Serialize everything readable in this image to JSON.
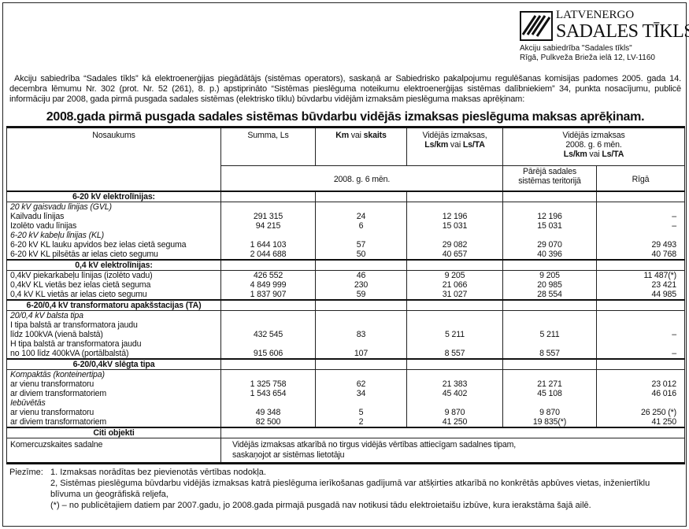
{
  "header": {
    "brand_line1": "LATVENERGO",
    "brand_line2": "SADALES TĪKLS",
    "company": "Akciju sabiedrība \"Sadales tīkls\"",
    "address": "Rīgā, Pulkveža Brieža ielā 12, LV-1160"
  },
  "intro": "Akciju sabiedrība “Sadales tīkls” kā elektroenerģijas piegādātājs (sistēmas operators), saskaņā ar Sabiedrisko pakalpojumu regulēšanas komisijas padomes 2005. gada 14. decembra lēmumu Nr. 302 (prot. Nr. 52 (261), 8. p.) apstiprināto “Sistēmas pieslēguma noteikumu elektroenerģijas sistēmas dalībniekiem” 34, punkta nosacījumu, publicē informāciju par 2008, gada pirmā pusgada sadales sistēmas (elektrisko tīklu) būvdarbu vidējām izmaksām pieslēguma maksas aprēķinam:",
  "title": "2008.gada pirmā pusgada sadales sistēmas būvdarbu vidējās izmaksas pieslēguma maksas aprēķinam.",
  "table": {
    "headers": {
      "name": "Nosaukums",
      "sum": "Summa, Ls",
      "km_a": "Km",
      "km_b": " vai ",
      "km_c": "skaits",
      "avg_a": "Vidējās izmaksas,",
      "avg_b": "Ls/km",
      "avg_c": " vai ",
      "avg_d": "Ls/TA",
      "avg2008_a": "Vidējās izmaksas",
      "avg2008_b": "2008. g. 6 mēn.",
      "avg2008_c": "Ls/km",
      "avg2008_d": " vai ",
      "avg2008_e": "Ls/TA",
      "period": "2008. g. 6 mēn.",
      "other": "Pārējā sadales sistēmas teritorijā",
      "riga": "Rīgā"
    },
    "rows": [
      {
        "type": "sec",
        "name": "6-20 kV elektrolīnijas:"
      },
      {
        "type": "it",
        "name": "20 kV gaisvadu līnijas (GVL)"
      },
      {
        "type": "data",
        "name": "Kailvadu līnijas",
        "values": [
          "291 315",
          "24",
          "12 196",
          "12 196",
          "–"
        ]
      },
      {
        "type": "data",
        "name": "Izolēto vadu līnijas",
        "values": [
          "94 215",
          "6",
          "15 031",
          "15 031",
          "–"
        ]
      },
      {
        "type": "it",
        "name": "6-20 kV kabeļu līnijas (KL)"
      },
      {
        "type": "data",
        "name": "6-20 kV KL lauku apvidos bez ielas cietā seguma",
        "values": [
          "1 644 103",
          "57",
          "29 082",
          "29 070",
          "29 493"
        ]
      },
      {
        "type": "data",
        "name": "6-20 kV KL pilsētās ar ielas cieto segumu",
        "values": [
          "2 044 688",
          "50",
          "40 657",
          "40 396",
          "40 768"
        ]
      },
      {
        "type": "sec",
        "name": "0,4 kV elektrolīnijas:"
      },
      {
        "type": "data",
        "name": "0,4kV piekarkabeļu līnijas (izolēto vadu)",
        "values": [
          "426 552",
          "46",
          "9 205",
          "9 205",
          "11 487(*)"
        ]
      },
      {
        "type": "data",
        "name": "0,4kV KL vietās bez ielas cietā seguma",
        "values": [
          "4 849 999",
          "230",
          "21 066",
          "20 985",
          "23 421"
        ]
      },
      {
        "type": "data",
        "name": "0,4 kV KL vietās ar ielas cieto segumu",
        "values": [
          "1 837 907",
          "59",
          "31 027",
          "28 554",
          "44 985"
        ]
      },
      {
        "type": "sec",
        "name": "6-20/0,4 kV transformatoru apakšstacijas (TA)"
      },
      {
        "type": "it",
        "name": "20/0,4 kV balsta tipa"
      },
      {
        "type": "text",
        "name": "I tipa balstā ar transformatora jaudu"
      },
      {
        "type": "data",
        "name": "līdz 100kVA (vienā balstā)",
        "values": [
          "432 545",
          "83",
          "5 211",
          "5 211",
          "–"
        ]
      },
      {
        "type": "text",
        "name": "H tipa balstā ar transformatora jaudu"
      },
      {
        "type": "data",
        "name": "no 100 līdz 400kVA (portālbalstā)",
        "values": [
          "915 606",
          "107",
          "8 557",
          "8 557",
          "–"
        ]
      },
      {
        "type": "sec",
        "name": "6-20/0,4kV slēgta tipa"
      },
      {
        "type": "it",
        "name": "Kompaktās (konteinertipa)"
      },
      {
        "type": "data",
        "name": "ar vienu transformatoru",
        "values": [
          "1 325 758",
          "62",
          "21 383",
          "21 271",
          "23 012"
        ]
      },
      {
        "type": "data",
        "name": "ar diviem transformatoriem",
        "values": [
          "1 543 654",
          "34",
          "45 402",
          "45 108",
          "46 016"
        ]
      },
      {
        "type": "it",
        "name": "Iebūvētās"
      },
      {
        "type": "data",
        "name": "ar vienu transformatoru",
        "values": [
          "49 348",
          "5",
          "9 870",
          "9 870",
          "26 250 (*)"
        ]
      },
      {
        "type": "data",
        "name": "ar diviem transformatoriem",
        "values": [
          "82 500",
          "2",
          "41 250",
          "19 835(*)",
          "41 250"
        ]
      }
    ],
    "other_section": "Citi objekti",
    "commercial_name": "Komercuzskaites sadalne",
    "commercial_text_1": "Vidējās izmaksas atkarībā no tirgus vidējās vērtības attiecīgam sadalnes tipam,",
    "commercial_text_2": "saskaņojot ar sistēmas lietotāju"
  },
  "notes": {
    "label": "Piezīme:",
    "items": [
      "1. Izmaksas norādītas bez pievienotās vērtības nodokļa.",
      "2, Sistēmas pieslēguma būvdarbu vidējās izmaksas katrā pieslēguma ierīkošanas gadījumā var atšķirties atkarībā no konkrētās apbūves vietas, inženiertīklu blīvuma un ģeogrāfiskā reljefa,",
      "(*) – no publicētajiem datiem par 2007.gadu, jo 2008.gada pirmajā pusgadā nav notikusi tādu elektroietaišu izbūve, kura ierakstāma šajā ailē."
    ]
  }
}
